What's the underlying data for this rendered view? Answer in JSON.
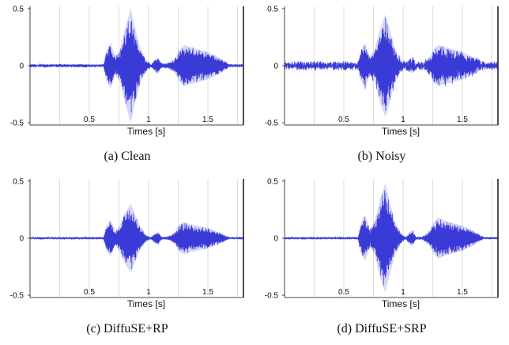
{
  "chart_data": [
    {
      "type": "line",
      "caption": "(a) Clean",
      "xlabel": "Times [s]",
      "ylabel": "",
      "xlim": [
        0,
        1.8
      ],
      "ylim": [
        -0.52,
        0.52
      ],
      "xticks": [
        {
          "value": 0.5,
          "label": "0.5"
        },
        {
          "value": 1.0,
          "label": "1"
        },
        {
          "value": 1.5,
          "label": "1.5"
        }
      ],
      "yticks": [
        {
          "value": 0.5,
          "label": "0.5"
        },
        {
          "value": 0,
          "label": "0"
        },
        {
          "value": -0.5,
          "label": "-0.5"
        }
      ],
      "grid": "vertical",
      "series": [
        {
          "color": "#1f1fd0",
          "noise_floor": 0.008,
          "envelope": [
            [
              0,
              0.01
            ],
            [
              0.62,
              0.01
            ],
            [
              0.64,
              0.12
            ],
            [
              0.68,
              0.2
            ],
            [
              0.72,
              0.08
            ],
            [
              0.76,
              0.14
            ],
            [
              0.8,
              0.32
            ],
            [
              0.85,
              0.5
            ],
            [
              0.88,
              0.35
            ],
            [
              0.93,
              0.15
            ],
            [
              0.98,
              0.05
            ],
            [
              1.02,
              0.01
            ],
            [
              1.05,
              0.05
            ],
            [
              1.08,
              0.07
            ],
            [
              1.11,
              0.02
            ],
            [
              1.16,
              0.02
            ],
            [
              1.22,
              0.06
            ],
            [
              1.26,
              0.14
            ],
            [
              1.3,
              0.18
            ],
            [
              1.36,
              0.16
            ],
            [
              1.5,
              0.12
            ],
            [
              1.62,
              0.06
            ],
            [
              1.68,
              0.01
            ],
            [
              1.8,
              0.01
            ]
          ]
        }
      ]
    },
    {
      "type": "line",
      "caption": "(b) Noisy",
      "xlabel": "Times [s]",
      "ylabel": "",
      "xlim": [
        0,
        1.8
      ],
      "ylim": [
        -0.52,
        0.52
      ],
      "xticks": [
        {
          "value": 0.5,
          "label": "0.5"
        },
        {
          "value": 1.0,
          "label": "1"
        },
        {
          "value": 1.5,
          "label": "1.5"
        }
      ],
      "yticks": [
        {
          "value": 0.5,
          "label": "0.5"
        },
        {
          "value": 0,
          "label": "0"
        },
        {
          "value": -0.5,
          "label": "-0.5"
        }
      ],
      "grid": "vertical",
      "series": [
        {
          "color": "#1f1fd0",
          "noise_floor": 0.025,
          "envelope": [
            [
              0,
              0.02
            ],
            [
              0.62,
              0.02
            ],
            [
              0.64,
              0.12
            ],
            [
              0.68,
              0.2
            ],
            [
              0.72,
              0.08
            ],
            [
              0.76,
              0.14
            ],
            [
              0.8,
              0.3
            ],
            [
              0.85,
              0.45
            ],
            [
              0.88,
              0.35
            ],
            [
              0.93,
              0.15
            ],
            [
              0.98,
              0.05
            ],
            [
              1.02,
              0.02
            ],
            [
              1.05,
              0.05
            ],
            [
              1.08,
              0.07
            ],
            [
              1.11,
              0.02
            ],
            [
              1.16,
              0.02
            ],
            [
              1.22,
              0.06
            ],
            [
              1.26,
              0.15
            ],
            [
              1.3,
              0.18
            ],
            [
              1.36,
              0.16
            ],
            [
              1.5,
              0.12
            ],
            [
              1.62,
              0.06
            ],
            [
              1.68,
              0.02
            ],
            [
              1.8,
              0.02
            ]
          ]
        }
      ]
    },
    {
      "type": "line",
      "caption": "(c) DiffuSE+RP",
      "xlabel": "Times [s]",
      "ylabel": "",
      "xlim": [
        0,
        1.8
      ],
      "ylim": [
        -0.52,
        0.52
      ],
      "xticks": [
        {
          "value": 0.5,
          "label": "0.5"
        },
        {
          "value": 1.0,
          "label": "1"
        },
        {
          "value": 1.5,
          "label": "1.5"
        }
      ],
      "yticks": [
        {
          "value": 0.5,
          "label": "0.5"
        },
        {
          "value": 0,
          "label": "0"
        },
        {
          "value": -0.5,
          "label": "-0.5"
        }
      ],
      "grid": "vertical",
      "series": [
        {
          "color": "#1f1fd0",
          "noise_floor": 0.006,
          "envelope": [
            [
              0,
              0.006
            ],
            [
              0.62,
              0.006
            ],
            [
              0.64,
              0.1
            ],
            [
              0.68,
              0.16
            ],
            [
              0.72,
              0.06
            ],
            [
              0.76,
              0.12
            ],
            [
              0.8,
              0.22
            ],
            [
              0.85,
              0.3
            ],
            [
              0.88,
              0.22
            ],
            [
              0.93,
              0.1
            ],
            [
              0.98,
              0.03
            ],
            [
              1.02,
              0.006
            ],
            [
              1.05,
              0.04
            ],
            [
              1.08,
              0.06
            ],
            [
              1.11,
              0.01
            ],
            [
              1.16,
              0.01
            ],
            [
              1.22,
              0.05
            ],
            [
              1.26,
              0.12
            ],
            [
              1.3,
              0.14
            ],
            [
              1.36,
              0.12
            ],
            [
              1.5,
              0.09
            ],
            [
              1.62,
              0.04
            ],
            [
              1.68,
              0.006
            ],
            [
              1.8,
              0.006
            ]
          ]
        }
      ]
    },
    {
      "type": "line",
      "caption": "(d) DiffuSE+SRP",
      "xlabel": "Times [s]",
      "ylabel": "",
      "xlim": [
        0,
        1.8
      ],
      "ylim": [
        -0.52,
        0.52
      ],
      "xticks": [
        {
          "value": 0.5,
          "label": "0.5"
        },
        {
          "value": 1.0,
          "label": "1"
        },
        {
          "value": 1.5,
          "label": "1.5"
        }
      ],
      "yticks": [
        {
          "value": 0.5,
          "label": "0.5"
        },
        {
          "value": 0,
          "label": "0"
        },
        {
          "value": -0.5,
          "label": "-0.5"
        }
      ],
      "grid": "vertical",
      "series": [
        {
          "color": "#1f1fd0",
          "noise_floor": 0.006,
          "envelope": [
            [
              0,
              0.006
            ],
            [
              0.62,
              0.006
            ],
            [
              0.64,
              0.12
            ],
            [
              0.68,
              0.2
            ],
            [
              0.72,
              0.08
            ],
            [
              0.76,
              0.14
            ],
            [
              0.8,
              0.32
            ],
            [
              0.85,
              0.48
            ],
            [
              0.88,
              0.35
            ],
            [
              0.93,
              0.15
            ],
            [
              0.98,
              0.05
            ],
            [
              1.02,
              0.006
            ],
            [
              1.05,
              0.05
            ],
            [
              1.08,
              0.07
            ],
            [
              1.11,
              0.01
            ],
            [
              1.16,
              0.01
            ],
            [
              1.22,
              0.06
            ],
            [
              1.26,
              0.14
            ],
            [
              1.3,
              0.18
            ],
            [
              1.36,
              0.15
            ],
            [
              1.5,
              0.11
            ],
            [
              1.62,
              0.05
            ],
            [
              1.68,
              0.006
            ],
            [
              1.8,
              0.006
            ]
          ]
        }
      ]
    }
  ]
}
